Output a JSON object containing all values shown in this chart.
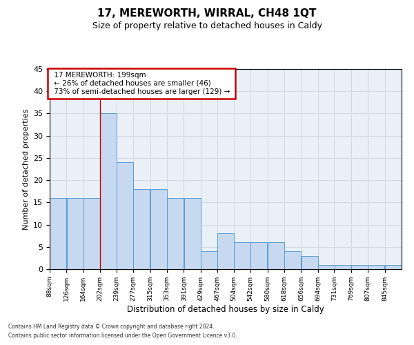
{
  "title": "17, MEREWORTH, WIRRAL, CH48 1QT",
  "subtitle": "Size of property relative to detached houses in Caldy",
  "xlabel": "Distribution of detached houses by size in Caldy",
  "ylabel": "Number of detached properties",
  "footnote1": "Contains HM Land Registry data © Crown copyright and database right 2024.",
  "footnote2": "Contains public sector information licensed under the Open Government Licence v3.0.",
  "annotation_line1": "17 MEREWORTH: 199sqm",
  "annotation_line2": "← 26% of detached houses are smaller (46)",
  "annotation_line3": "73% of semi-detached houses are larger (129) →",
  "bar_left_edges": [
    88,
    126,
    164,
    202,
    239,
    277,
    315,
    353,
    391,
    429,
    467,
    504,
    542,
    580,
    618,
    656,
    694,
    731,
    769,
    807,
    845
  ],
  "bar_heights": [
    16,
    16,
    16,
    35,
    24,
    18,
    18,
    16,
    16,
    4,
    8,
    6,
    6,
    6,
    4,
    3,
    1,
    1,
    1,
    1,
    1
  ],
  "bin_width": 38,
  "tick_labels": [
    "88sqm",
    "126sqm",
    "164sqm",
    "202sqm",
    "239sqm",
    "277sqm",
    "315sqm",
    "353sqm",
    "391sqm",
    "429sqm",
    "467sqm",
    "504sqm",
    "542sqm",
    "580sqm",
    "618sqm",
    "656sqm",
    "694sqm",
    "731sqm",
    "769sqm",
    "807sqm",
    "845sqm"
  ],
  "bar_color": "#c6d9f0",
  "bar_edge_color": "#5b9bd5",
  "red_line_x": 202,
  "annotation_box_color": "#ffffff",
  "annotation_box_edge_color": "#cc0000",
  "grid_color": "#d0d8e4",
  "background_color": "#eaf0f8",
  "ylim": [
    0,
    45
  ],
  "yticks": [
    0,
    5,
    10,
    15,
    20,
    25,
    30,
    35,
    40,
    45
  ],
  "title_fontsize": 11,
  "subtitle_fontsize": 9
}
